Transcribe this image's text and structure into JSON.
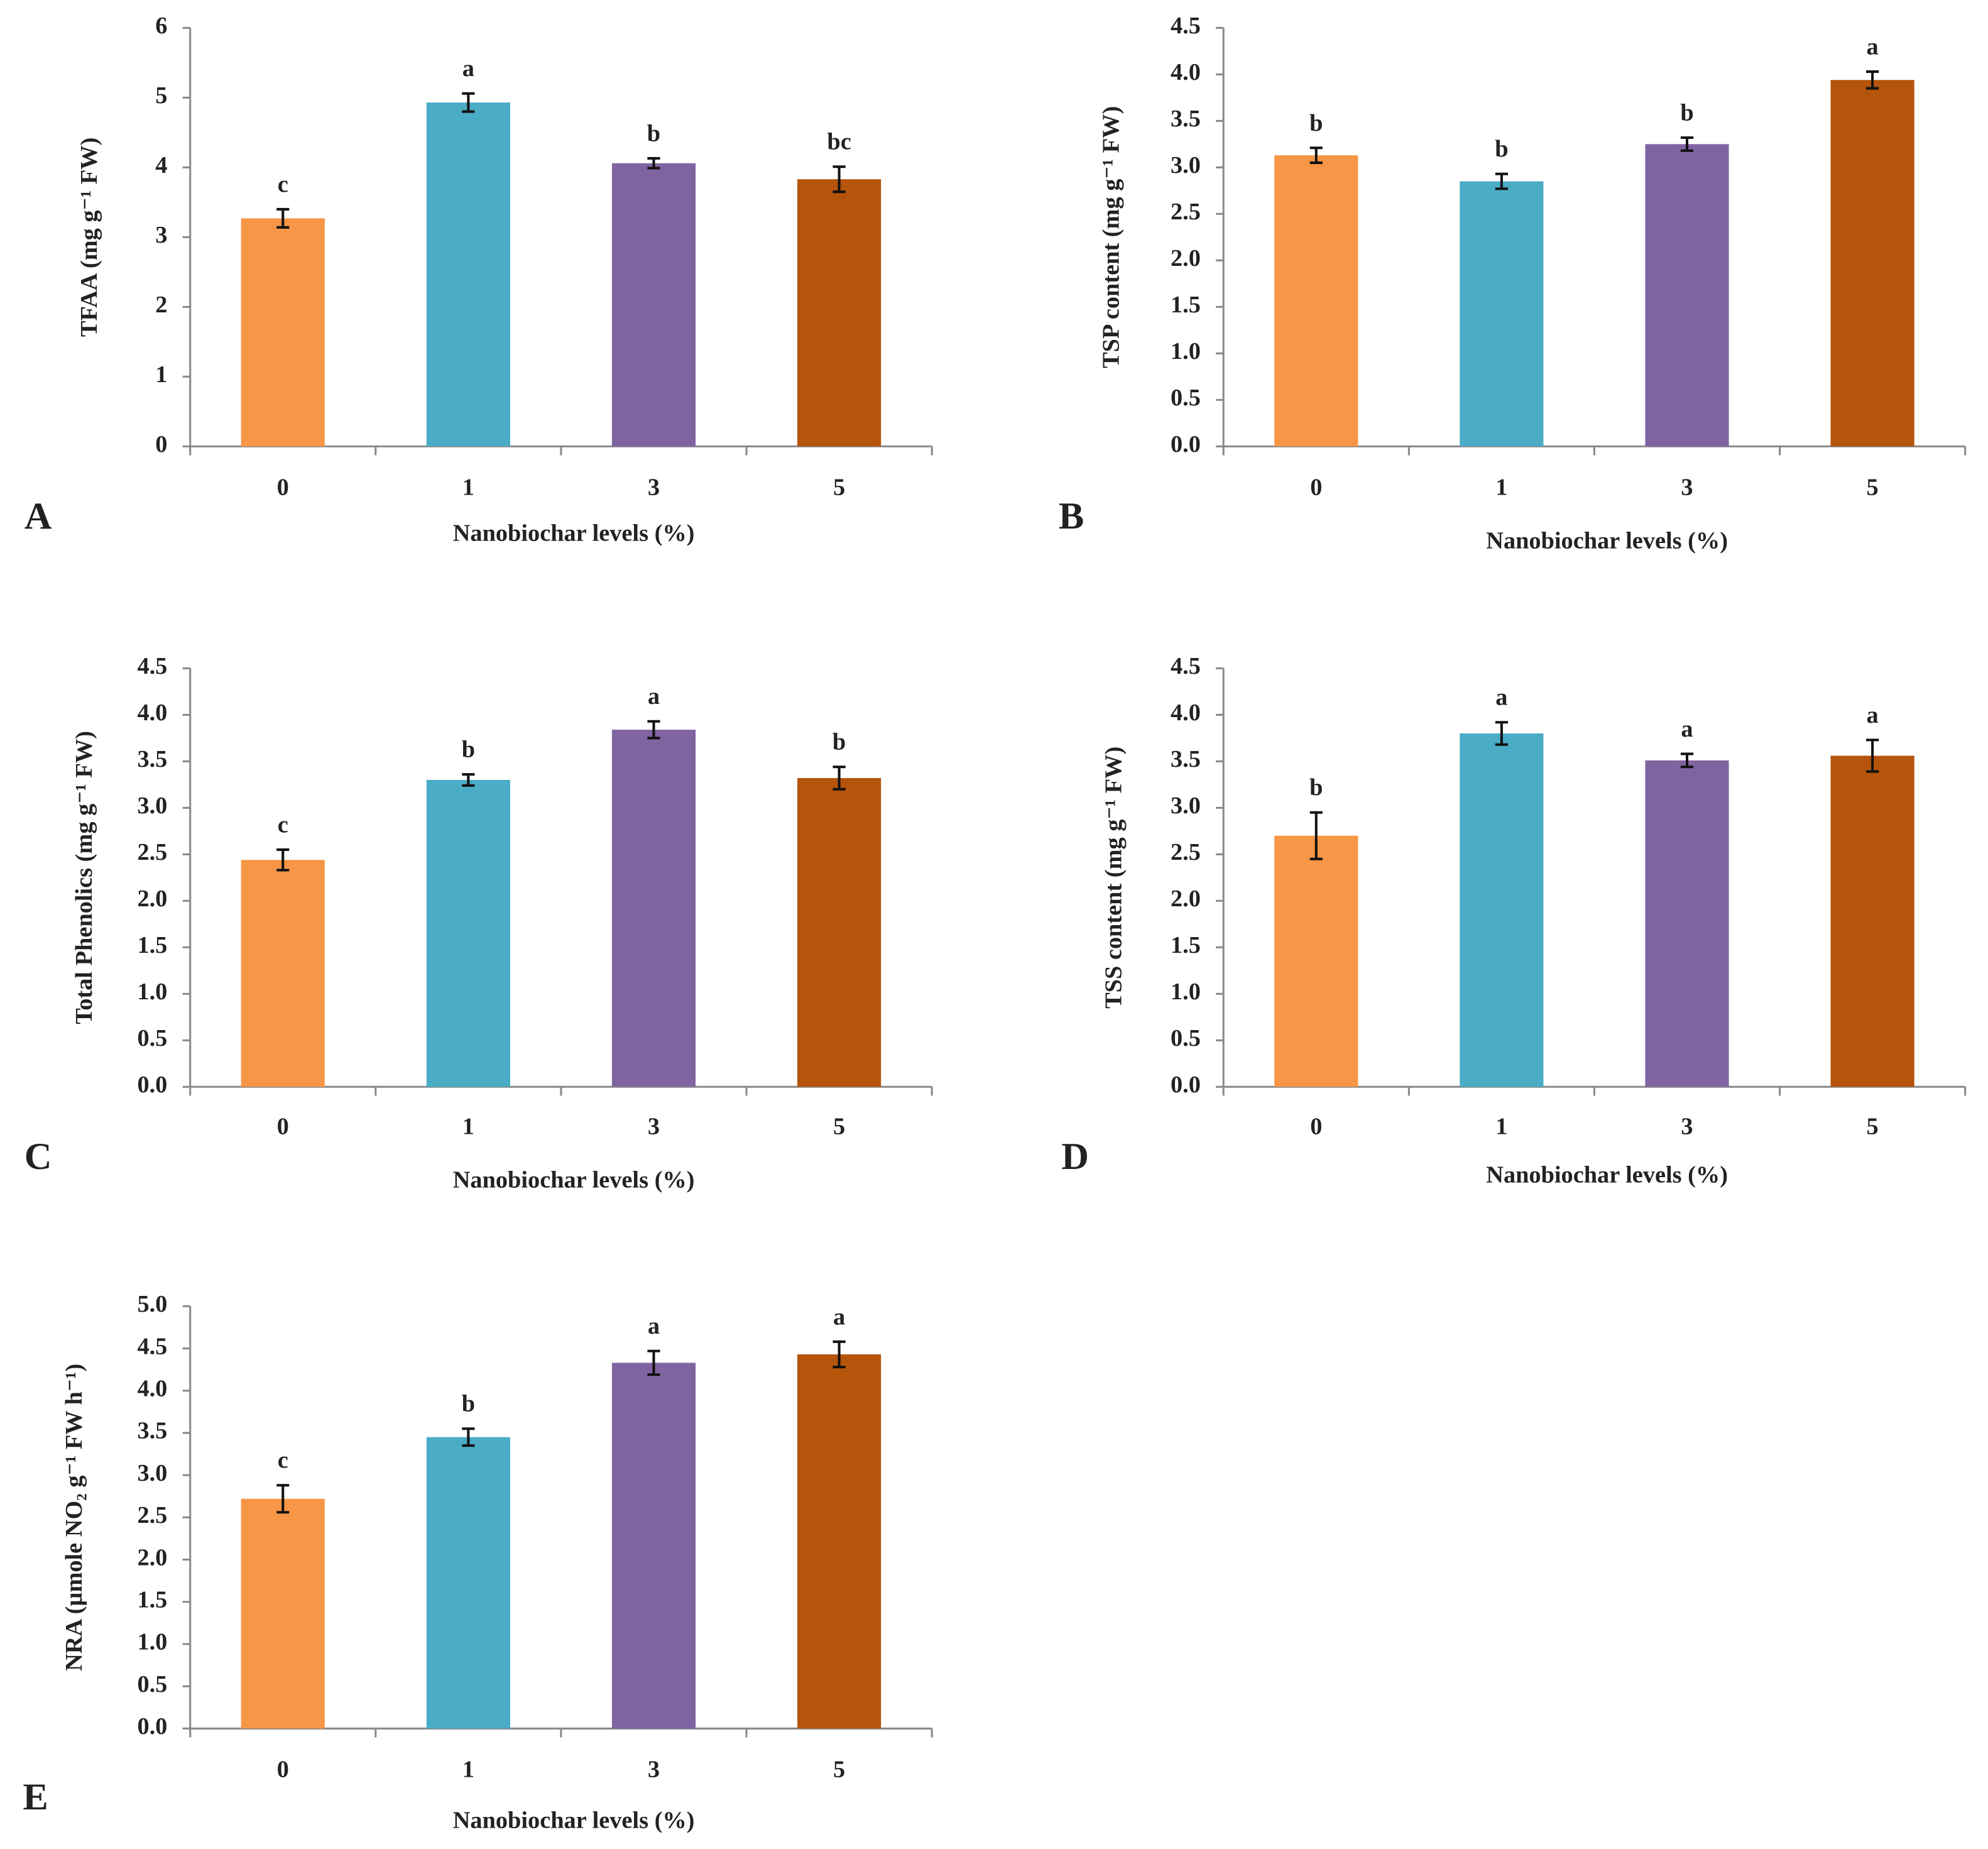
{
  "chart_data": [
    {
      "type": "bar",
      "panel": "A",
      "y_label": "TFAA (mg g⁻¹ FW)",
      "x_label": "Nanobiochar levels (%)",
      "categories": [
        "0",
        "1",
        "3",
        "5"
      ],
      "values": [
        3.27,
        4.93,
        4.06,
        3.83
      ],
      "errors": [
        0.13,
        0.13,
        0.07,
        0.18
      ],
      "annotations": [
        "c",
        "a",
        "b",
        "bc"
      ],
      "colors": [
        "#f79646",
        "#4bacc6",
        "#8064a2",
        "#b5540b"
      ],
      "ylim": [
        0,
        6
      ],
      "yticks": [
        0,
        1,
        2,
        3,
        4,
        5,
        6
      ]
    },
    {
      "type": "bar",
      "panel": "B",
      "y_label": "TSP content (mg g⁻¹ FW)",
      "x_label": "Nanobiochar levels (%)",
      "categories": [
        "0",
        "1",
        "3",
        "5"
      ],
      "values": [
        3.13,
        2.85,
        3.25,
        3.94
      ],
      "errors": [
        0.08,
        0.08,
        0.07,
        0.09
      ],
      "annotations": [
        "b",
        "b",
        "b",
        "a"
      ],
      "colors": [
        "#f79646",
        "#4bacc6",
        "#8064a2",
        "#b5540b"
      ],
      "ylim": [
        0,
        4.5
      ],
      "yticks": [
        {
          "value": 0,
          "label": "0.0"
        },
        0.5,
        {
          "value": 1,
          "label": "1.0"
        },
        1.5,
        {
          "value": 2,
          "label": "2.0"
        },
        2.5,
        {
          "value": 3,
          "label": "3.0"
        },
        3.5,
        {
          "value": 4,
          "label": "4.0"
        },
        4.5
      ]
    },
    {
      "type": "bar",
      "panel": "C",
      "y_label": "Total Phenolics (mg g⁻¹ FW)",
      "x_label": "Nanobiochar levels (%)",
      "categories": [
        "0",
        "1",
        "3",
        "5"
      ],
      "values": [
        2.44,
        3.3,
        3.84,
        3.32
      ],
      "errors": [
        0.11,
        0.06,
        0.09,
        0.12
      ],
      "annotations": [
        "c",
        "b",
        "a",
        "b"
      ],
      "colors": [
        "#f79646",
        "#4bacc6",
        "#8064a2",
        "#b5540b"
      ],
      "ylim": [
        0,
        4.5
      ],
      "yticks": [
        {
          "value": 0,
          "label": "0.0"
        },
        0.5,
        {
          "value": 1,
          "label": "1.0"
        },
        1.5,
        {
          "value": 2,
          "label": "2.0"
        },
        2.5,
        {
          "value": 3,
          "label": "3.0"
        },
        3.5,
        {
          "value": 4,
          "label": "4.0"
        },
        4.5
      ]
    },
    {
      "type": "bar",
      "panel": "D",
      "y_label": "TSS content (mg g⁻¹ FW)",
      "x_label": "Nanobiochar levels (%)",
      "categories": [
        "0",
        "1",
        "3",
        "5"
      ],
      "values": [
        2.7,
        3.8,
        3.51,
        3.56
      ],
      "errors": [
        0.25,
        0.12,
        0.07,
        0.17
      ],
      "annotations": [
        "b",
        "a",
        "a",
        "a"
      ],
      "colors": [
        "#f79646",
        "#4bacc6",
        "#8064a2",
        "#b5540b"
      ],
      "ylim": [
        0,
        4.5
      ],
      "yticks": [
        {
          "value": 0,
          "label": "0.0"
        },
        0.5,
        {
          "value": 1,
          "label": "1.0"
        },
        1.5,
        {
          "value": 2,
          "label": "2.0"
        },
        2.5,
        {
          "value": 3,
          "label": "3.0"
        },
        3.5,
        {
          "value": 4,
          "label": "4.0"
        },
        4.5
      ]
    },
    {
      "type": "bar",
      "panel": "E",
      "y_label": "NRA (µmole NO₂ g⁻¹ FW h⁻¹)",
      "x_label": "Nanobiochar levels (%)",
      "categories": [
        "0",
        "1",
        "3",
        "5"
      ],
      "values": [
        2.72,
        3.45,
        4.33,
        4.43
      ],
      "errors": [
        0.16,
        0.1,
        0.14,
        0.15
      ],
      "annotations": [
        "c",
        "b",
        "a",
        "a"
      ],
      "colors": [
        "#f79646",
        "#4bacc6",
        "#8064a2",
        "#b5540b"
      ],
      "ylim": [
        0,
        5
      ],
      "yticks": [
        {
          "value": 0,
          "label": "0.0"
        },
        0.5,
        {
          "value": 1,
          "label": "1.0"
        },
        1.5,
        {
          "value": 2,
          "label": "2.0"
        },
        2.5,
        {
          "value": 3,
          "label": "3.0"
        },
        3.5,
        {
          "value": 4,
          "label": "4.0"
        },
        4.5,
        {
          "value": 5,
          "label": "5.0"
        }
      ]
    }
  ]
}
